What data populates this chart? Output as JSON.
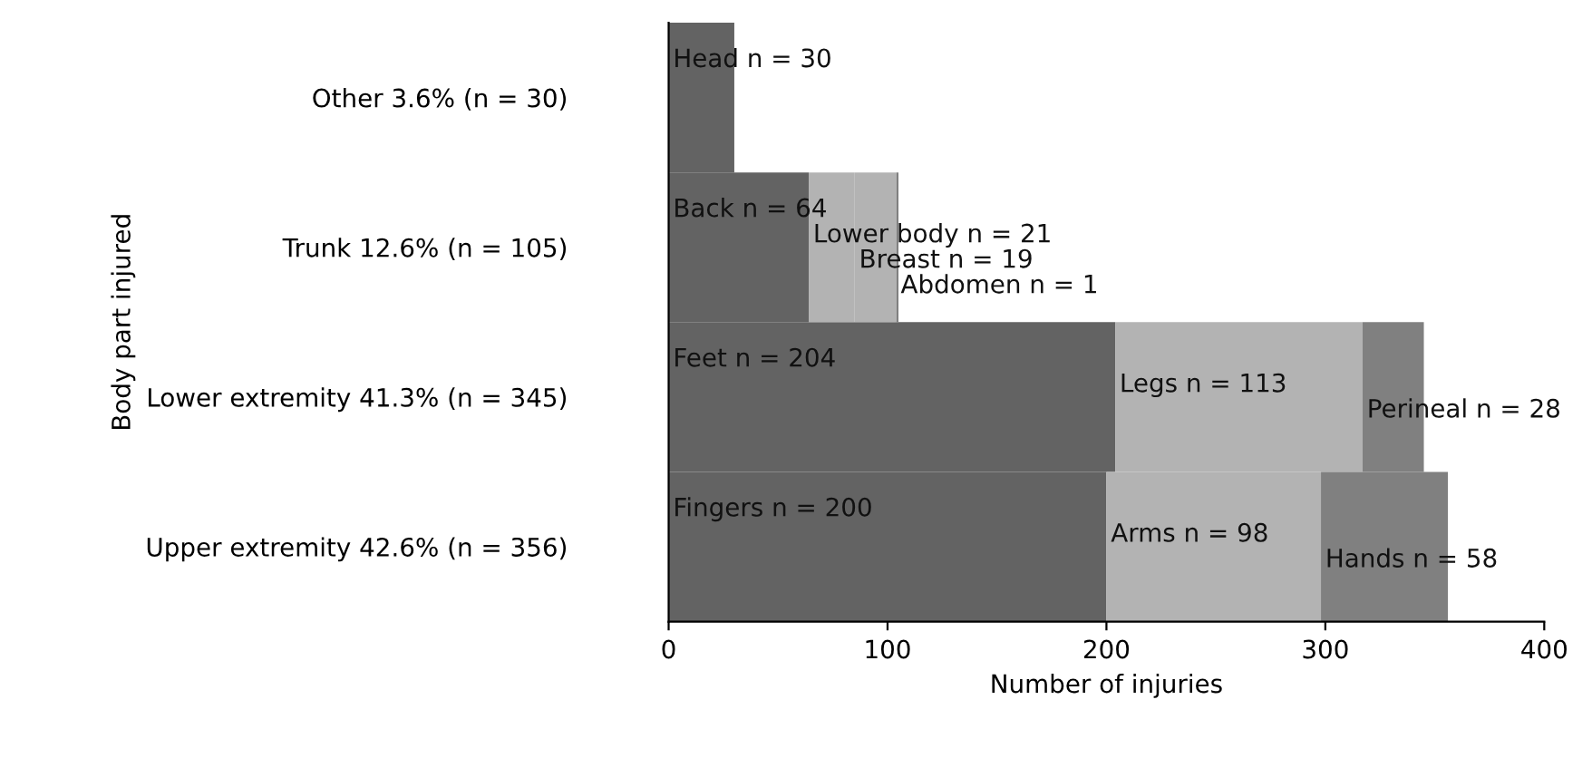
{
  "chart_data": {
    "type": "bar",
    "orientation": "horizontal",
    "stacked": true,
    "categories": [
      "Other 3.6% (n = 30)",
      "Trunk 12.6% (n = 105)",
      "Lower extremity 41.3% (n = 345)",
      "Upper extremity 42.6% (n = 356)"
    ],
    "series": [
      {
        "colors": [
          "#636363",
          "#636363",
          "#636363",
          "#636363"
        ],
        "values": [
          30,
          64,
          204,
          200
        ],
        "value_labels": [
          "Head n = 30",
          "Back n = 64",
          "Feet n = 204",
          "Fingers n = 200"
        ]
      },
      {
        "colors": [
          null,
          "#b3b3b3",
          "#b3b3b3",
          "#b3b3b3"
        ],
        "values": [
          null,
          21,
          113,
          98
        ],
        "value_labels": [
          null,
          "Lower body n = 21",
          "Legs n = 113",
          "Arms n = 98"
        ]
      },
      {
        "colors": [
          null,
          "#b3b3b3",
          "#808080",
          "#808080"
        ],
        "values": [
          null,
          19,
          28,
          58
        ],
        "value_labels": [
          null,
          "Breast n = 19",
          "Perineal n = 28",
          "Hands n = 58"
        ]
      },
      {
        "colors": [
          null,
          "#808080",
          null,
          null
        ],
        "values": [
          null,
          1,
          null,
          null
        ],
        "value_labels": [
          null,
          "Abdomen n = 1",
          null,
          null
        ]
      }
    ],
    "xlim": [
      0,
      400
    ],
    "xticks": [
      0,
      100,
      200,
      300,
      400
    ],
    "xlabel": "Number of injuries",
    "ylabel": "Body part injured",
    "grid": false,
    "legend": false
  }
}
